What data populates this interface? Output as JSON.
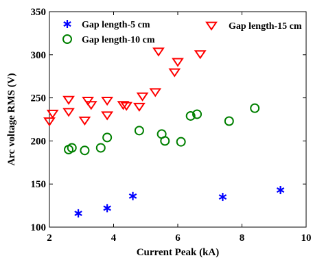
{
  "chart_data": {
    "type": "scatter",
    "xlabel": "Current Peak (kA)",
    "ylabel": "Arc voltage RMS (V)",
    "xlim": [
      2,
      10
    ],
    "ylim": [
      100,
      350
    ],
    "xticks": [
      2,
      4,
      6,
      8,
      10
    ],
    "yticks": [
      100,
      150,
      200,
      250,
      300,
      350
    ],
    "grid": false,
    "legend_placement": "top",
    "series": [
      {
        "name": "Gap length-5 cm",
        "marker": "asterisk",
        "color": "#0000ff",
        "points": [
          [
            2.9,
            116
          ],
          [
            3.8,
            122
          ],
          [
            4.6,
            136
          ],
          [
            7.4,
            135
          ],
          [
            9.2,
            143
          ]
        ]
      },
      {
        "name": "Gap length-10 cm",
        "marker": "circle",
        "color": "#008000",
        "points": [
          [
            2.6,
            190
          ],
          [
            2.7,
            192
          ],
          [
            3.1,
            189
          ],
          [
            3.6,
            192
          ],
          [
            3.8,
            204
          ],
          [
            4.8,
            212
          ],
          [
            5.5,
            208
          ],
          [
            5.6,
            200
          ],
          [
            6.1,
            199
          ],
          [
            6.4,
            229
          ],
          [
            6.6,
            231
          ],
          [
            7.6,
            223
          ],
          [
            8.4,
            238
          ]
        ]
      },
      {
        "name": "Gap length-15 cm",
        "marker": "triangle-down",
        "color": "#ff0000",
        "points": [
          [
            2.0,
            223
          ],
          [
            2.1,
            232
          ],
          [
            2.6,
            234
          ],
          [
            2.6,
            248
          ],
          [
            3.1,
            224
          ],
          [
            3.2,
            247
          ],
          [
            3.3,
            242
          ],
          [
            3.8,
            247
          ],
          [
            3.8,
            230
          ],
          [
            4.3,
            242
          ],
          [
            4.4,
            241
          ],
          [
            4.8,
            240
          ],
          [
            4.9,
            252
          ],
          [
            5.3,
            257
          ],
          [
            5.4,
            304
          ],
          [
            5.9,
            280
          ],
          [
            6.0,
            292
          ],
          [
            6.7,
            301
          ]
        ]
      }
    ]
  }
}
